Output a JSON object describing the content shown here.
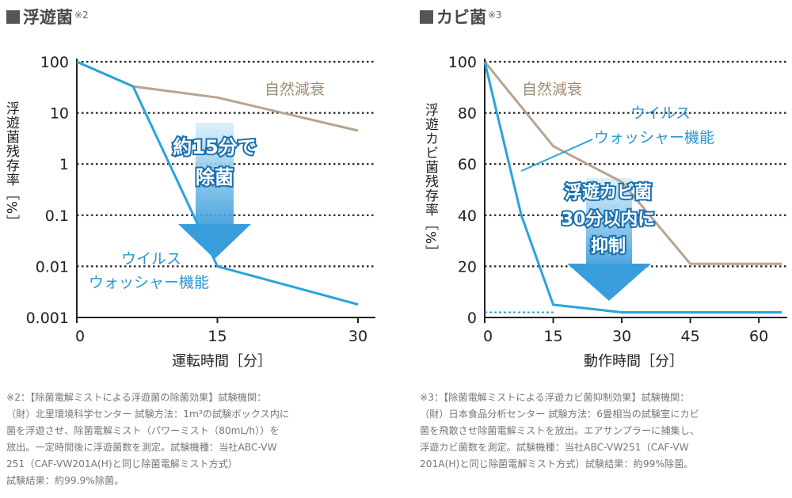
{
  "left_header": {
    "title": "浮遊菌",
    "ref": "※2"
  },
  "right_header": {
    "title": "カビ菌",
    "ref": "※3"
  },
  "chart_data": [
    {
      "type": "line",
      "yscale": "log",
      "ylim": [
        0.001,
        100
      ],
      "xlim": [
        0,
        30
      ],
      "xticks": [
        "0",
        "15",
        "30"
      ],
      "yticks": [
        "100",
        "10",
        "1",
        "0.1",
        "0.01",
        "0.001"
      ],
      "xlabel": "運転時間［分］",
      "ylabel": "浮遊菌残存率［%］",
      "grid": "dotted horizontal",
      "series": [
        {
          "name": "自然減衰",
          "color": "#b8a48e",
          "x": [
            0,
            6,
            15,
            30
          ],
          "y": [
            100,
            33,
            20,
            4.5
          ]
        },
        {
          "name": "ウイルスウォッシャー機能",
          "color": "#2aa3dc",
          "x": [
            0,
            6,
            15,
            30
          ],
          "y": [
            100,
            33,
            0.01,
            0.0018
          ]
        }
      ],
      "annotations": {
        "natural_label": "自然減衰",
        "virus_label_1": "ウイルス",
        "virus_label_2": "ウォッシャー機能",
        "arrow_text_1": "約15分で",
        "arrow_text_2": "除菌"
      }
    },
    {
      "type": "line",
      "ylim": [
        0,
        100
      ],
      "xlim": [
        0,
        65
      ],
      "xticks": [
        "0",
        "15",
        "30",
        "45",
        "60"
      ],
      "yticks": [
        "100",
        "80",
        "60",
        "40",
        "20",
        "0"
      ],
      "xlabel": "動作時間［分］",
      "ylabel": "浮遊カビ菌残存率［%］",
      "grid": "dotted horizontal",
      "series": [
        {
          "name": "自然減衰",
          "color": "#b8a48e",
          "x": [
            0,
            15,
            30,
            45,
            65
          ],
          "y": [
            100,
            67,
            53,
            21,
            21
          ]
        },
        {
          "name": "ウイルスウォッシャー機能",
          "color": "#2aa3dc",
          "x": [
            0,
            8,
            15,
            30,
            65
          ],
          "y": [
            100,
            40,
            5,
            2,
            2
          ]
        }
      ],
      "annotations": {
        "natural_label": "自然減衰",
        "virus_label_1": "ウイルス",
        "virus_label_2": "ウォッシャー機能",
        "arrow_text_1": "浮遊カビ菌",
        "arrow_text_2": "30分以内に",
        "arrow_text_3": "抑制"
      }
    }
  ],
  "notes": {
    "left": [
      "※2：【除菌電解ミストによる浮遊菌の除菌効果】試験機関：",
      "（財）北里環境科学センター 試験方法：1m³の試験ボックス内に",
      "菌を浮遊させ、除菌電解ミスト（パワーミスト（80mL/h））を",
      "放出。一定時間後に浮遊菌数を測定。試験機種：当社ABC-VW",
      "251（CAF-VW201A(H)と同じ除菌電解ミスト方式）",
      "試験結果：約99.9%除菌。"
    ],
    "right": [
      "※3：【除菌電解ミストによる浮遊カビ菌抑制効果】試験機関：",
      "（財）日本食品分析センター 試験方法：6畳相当の試験室にカビ",
      "菌を飛散させ除菌電解ミストを放出。エアサンプラーに捕集し、",
      "浮遊カビ菌数を測定。試験機種：当社ABC-VW251（CAF-VW",
      "201A(H)と同じ除菌電解ミスト方式）試験結果：約99%除菌。"
    ]
  }
}
